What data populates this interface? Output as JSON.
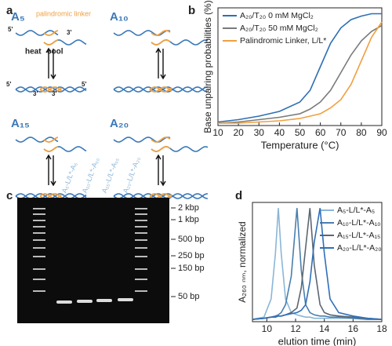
{
  "panel_labels": [
    "a",
    "b",
    "c",
    "d"
  ],
  "diagram": {
    "constructs": [
      "A₅",
      "A₁₀",
      "A₁₅",
      "A₂₀"
    ],
    "linker_label": "palindromic linker",
    "heat": "heat",
    "cool": "cool",
    "ends": [
      "5'",
      "3'",
      "5'",
      "3'",
      "3'",
      "5'"
    ]
  },
  "gel": {
    "lanes": [
      "A₅-L/L*-A₅",
      "A₁₀-L/L*-A₁₀",
      "A₁₅-L/L*-A₁₅",
      "A₂₀-L/L*-A₂₀"
    ],
    "ladder": [
      "2 kbp",
      "1 kbp",
      "500 bp",
      "250 bp",
      "150 bp",
      "50 bp"
    ]
  },
  "chart_data": [
    {
      "type": "line",
      "x_label": "Temperature (°C)",
      "y_label": "Base unpairing probabilities (%)",
      "x": [
        10,
        20,
        30,
        40,
        50,
        55,
        60,
        65,
        70,
        75,
        80,
        85,
        90
      ],
      "series": [
        {
          "name": "A₂₀/T₂₀ 0 mM MgCl₂",
          "color": "#2e6fb4",
          "values": [
            0.03,
            0.05,
            0.08,
            0.12,
            0.2,
            0.3,
            0.5,
            0.7,
            0.83,
            0.9,
            0.93,
            0.95,
            0.95
          ]
        },
        {
          "name": "A₂₀/T₂₀ 50 mM MgCl₂",
          "color": "#7a7a7a",
          "values": [
            0.02,
            0.03,
            0.05,
            0.07,
            0.1,
            0.14,
            0.2,
            0.3,
            0.45,
            0.6,
            0.72,
            0.8,
            0.85
          ]
        },
        {
          "name": "Palindromic Linker, L/L*",
          "color": "#f0a040",
          "values": [
            0.02,
            0.02,
            0.03,
            0.04,
            0.06,
            0.08,
            0.1,
            0.15,
            0.22,
            0.35,
            0.55,
            0.75,
            0.88
          ]
        }
      ],
      "xlim": [
        10,
        90
      ],
      "ylim": [
        0,
        1
      ],
      "xticks": [
        10,
        20,
        30,
        40,
        50,
        60,
        70,
        80,
        90
      ]
    },
    {
      "type": "line",
      "x_label": "elution time (min)",
      "y_label": "A₂₆₀ ₙₘ, normalized",
      "x": [
        9,
        9.8,
        10.3,
        10.6,
        10.8,
        11,
        11.3,
        11.7,
        12.1,
        12.4,
        12.7,
        13,
        13.3,
        13.7,
        14,
        14.4,
        15,
        16,
        17,
        18
      ],
      "series": [
        {
          "name": "A₅-L/L*-A₅",
          "color": "#8ab6d8",
          "values": [
            0.02,
            0.04,
            0.2,
            0.6,
            1,
            0.6,
            0.2,
            0.08,
            0.06,
            0.05,
            0.04,
            0.04,
            0.03,
            0.03,
            0.03,
            0.03,
            0.03,
            0.03,
            0.02,
            0.02
          ]
        },
        {
          "name": "A₁₀-L/L*-A₁₀",
          "color": "#4a7fae",
          "values": [
            0.02,
            0.03,
            0.04,
            0.05,
            0.06,
            0.08,
            0.15,
            0.4,
            1,
            0.45,
            0.15,
            0.08,
            0.06,
            0.05,
            0.05,
            0.04,
            0.04,
            0.03,
            0.02,
            0.02
          ]
        },
        {
          "name": "A₁₅-L/L*-A₁₅",
          "color": "#5c6670",
          "values": [
            0.02,
            0.03,
            0.04,
            0.04,
            0.05,
            0.05,
            0.06,
            0.08,
            0.12,
            0.3,
            0.65,
            1,
            0.5,
            0.15,
            0.08,
            0.06,
            0.05,
            0.04,
            0.03,
            0.02
          ]
        },
        {
          "name": "A₂₀-L/L*-A₂₀",
          "color": "#2e6fb8",
          "values": [
            0.02,
            0.03,
            0.04,
            0.04,
            0.05,
            0.05,
            0.06,
            0.07,
            0.08,
            0.1,
            0.15,
            0.35,
            0.7,
            1,
            0.6,
            0.2,
            0.08,
            0.05,
            0.03,
            0.02
          ]
        }
      ],
      "xlim": [
        9,
        18
      ],
      "ylim": [
        0,
        1.05
      ],
      "xticks": [
        10,
        12,
        14,
        16,
        18
      ]
    }
  ]
}
